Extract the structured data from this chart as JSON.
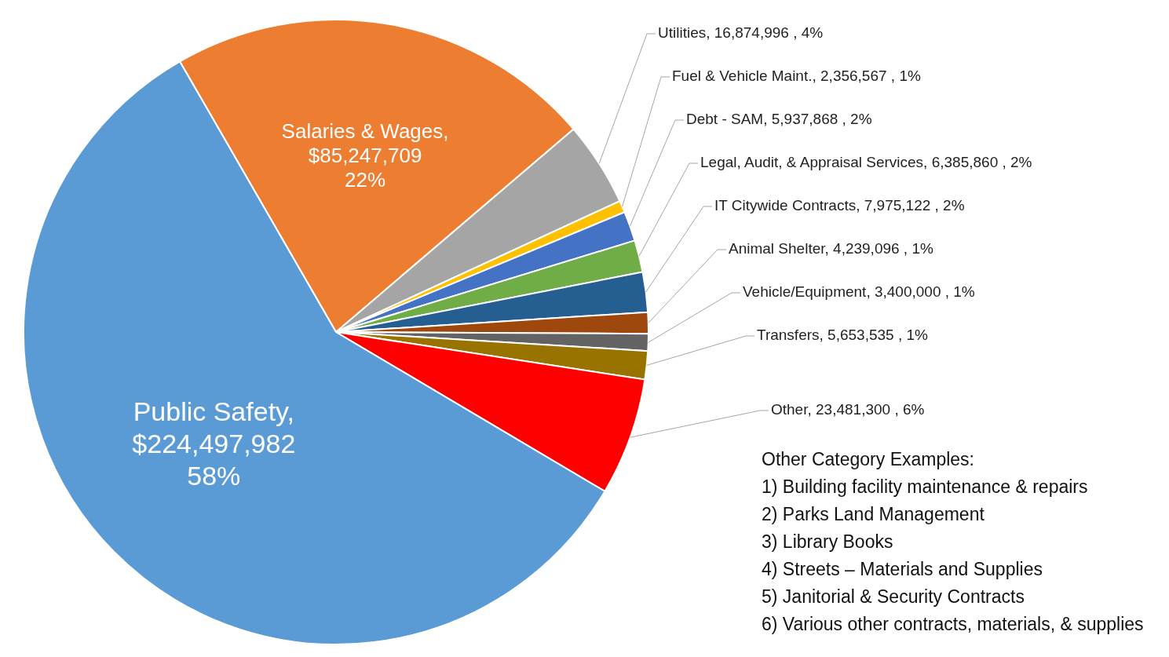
{
  "chart_data": {
    "type": "pie",
    "categories": [
      "Salaries & Wages",
      "Utilities",
      "Fuel & Vehicle Maint.",
      "Debt - SAM",
      "Legal, Audit, & Appraisal Services",
      "IT Citywide Contracts",
      "Animal Shelter",
      "Vehicle/Equipment",
      "Transfers",
      "Other",
      "Public Safety"
    ],
    "values": [
      85247709,
      16874996,
      2356567,
      5937868,
      6385860,
      7975122,
      4239096,
      3400000,
      5653535,
      23481300,
      224497982
    ],
    "value_labels": [
      ",\n$85,247,709\n22%",
      ", 16,874,996 , 4%",
      ", 2,356,567 , 1%",
      ", 5,937,868 , 2%",
      ", 6,385,860 , 2%",
      ", 7,975,122 , 2%",
      ", 4,239,096 , 1%",
      ", 3,400,000 , 1%",
      ", 5,653,535 , 1%",
      ", 23,481,300 , 6%",
      ",\n$224,497,982\n58%"
    ],
    "colors": [
      "#ed7d31",
      "#a5a5a5",
      "#ffc000",
      "#4472c4",
      "#70ad47",
      "#255e91",
      "#9e480e",
      "#636363",
      "#997300",
      "#ff0000",
      "#5b9bd5"
    ],
    "annotations": [
      "Other Category Examples:",
      "1)  Building facility maintenance & repairs",
      "2)  Parks Land Management",
      "3)  Library Books",
      "4)  Streets – Materials and Supplies",
      "5)  Janitorial & Security Contracts",
      "6)  Various other contracts, materials, & supplies"
    ]
  }
}
